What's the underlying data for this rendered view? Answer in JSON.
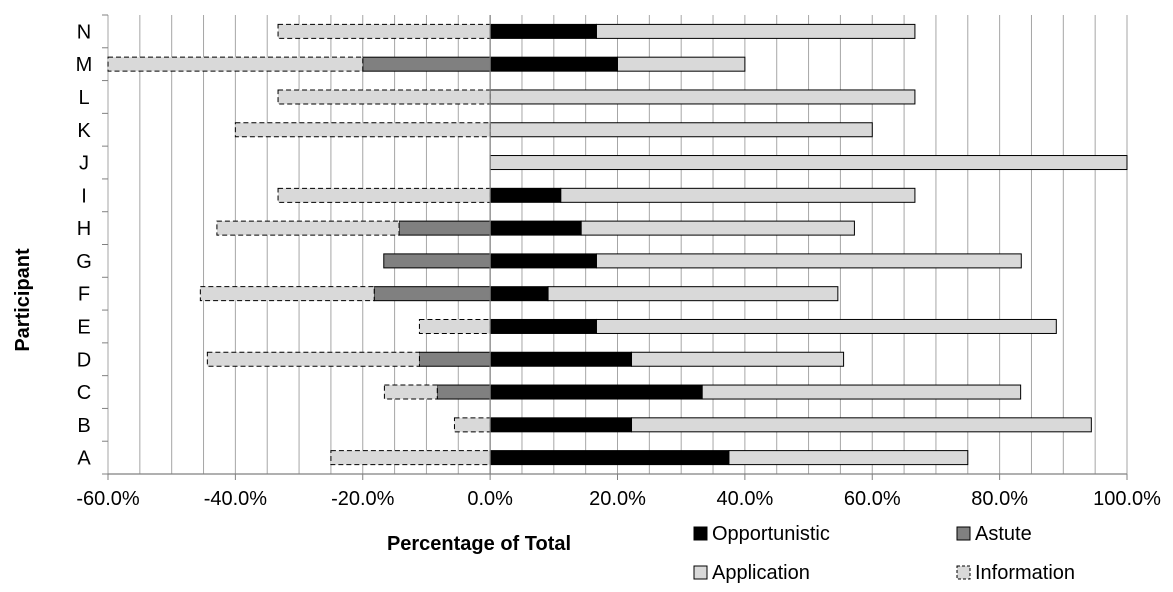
{
  "chart_data": {
    "type": "bar",
    "orientation": "horizontal",
    "stacked": true,
    "title": "",
    "xlabel": "Percentage of Total",
    "ylabel": "Participant",
    "xlim": [
      -0.6,
      1.0
    ],
    "x_ticks": [
      -0.6,
      -0.4,
      -0.2,
      0.0,
      0.2,
      0.4,
      0.6,
      0.8,
      1.0
    ],
    "x_tick_labels": [
      "-60.0%",
      "-40.0%",
      "-20.0%",
      "0.0%",
      "20.0%",
      "40.0%",
      "60.0%",
      "80.0%",
      "100.0%"
    ],
    "grid": "vertical",
    "legend_position": "bottom-right",
    "categories": [
      "A",
      "B",
      "C",
      "D",
      "E",
      "F",
      "G",
      "H",
      "I",
      "J",
      "K",
      "L",
      "M",
      "N"
    ],
    "series": [
      {
        "name": "Opportunistic",
        "color": "#000000",
        "style": "solid",
        "values": [
          0.375,
          0.222,
          0.333,
          0.222,
          0.167,
          0.091,
          0.167,
          0.143,
          0.111,
          0.0,
          0.0,
          0.0,
          0.2,
          0.167
        ]
      },
      {
        "name": "Astute",
        "color": "#808080",
        "style": "solid",
        "values": [
          0.0,
          0.0,
          -0.083,
          -0.111,
          0.0,
          -0.182,
          -0.167,
          -0.143,
          0.0,
          0.0,
          0.0,
          0.0,
          -0.2,
          0.0
        ]
      },
      {
        "name": "Application",
        "color": "#d9d9d9",
        "style": "solid",
        "values": [
          0.375,
          0.722,
          0.5,
          0.333,
          0.722,
          0.455,
          0.667,
          0.429,
          0.556,
          1.0,
          0.6,
          0.667,
          0.2,
          0.5
        ]
      },
      {
        "name": "Information",
        "color": "#d9d9d9",
        "style": "dashed",
        "values": [
          -0.25,
          -0.056,
          -0.083,
          -0.333,
          -0.111,
          -0.273,
          0.0,
          -0.286,
          -0.333,
          0.0,
          -0.4,
          -0.333,
          -0.4,
          -0.333
        ]
      }
    ]
  }
}
